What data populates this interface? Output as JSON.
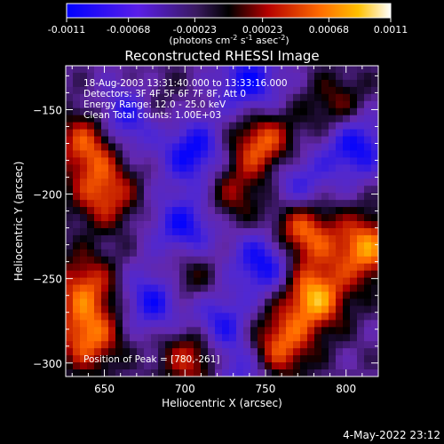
{
  "colorbar": {
    "ticks": [
      "-0.0011",
      "-0.00068",
      "-0.00023",
      "0.00023",
      "0.00068",
      "0.0011"
    ],
    "tick_values": [
      -0.0011,
      -0.00068,
      -0.00023,
      0.00023,
      0.00068,
      0.0011
    ],
    "range": [
      -0.0011,
      0.0011
    ],
    "units_text": "(photons cm",
    "units_exp1": "-2",
    "units_mid": " s",
    "units_exp2": "-1",
    "units_end": " asec",
    "units_exp3": "-2",
    "units_close": ")",
    "colors": [
      "#0000ff",
      "#7a1ee0",
      "#000000",
      "#c80000",
      "#ff8000",
      "#ffffff"
    ]
  },
  "footer": {
    "timestamp": "4-May-2022 23:12"
  },
  "chart_data": {
    "type": "heatmap",
    "title": "Reconstructed RHESSI Image",
    "xlabel": "Heliocentric X (arcsec)",
    "ylabel": "Heliocentric Y (arcsec)",
    "xlim": [
      626,
      820
    ],
    "ylim": [
      -308,
      -124
    ],
    "xticks": [
      650,
      700,
      750,
      800
    ],
    "yticks": [
      -150,
      -200,
      -250,
      -300
    ],
    "annotations": [
      "18-Aug-2003 13:31:40.000 to 13:33:16.000",
      "Detectors: 3F 4F 5F 6F 7F 8F, Att 0",
      "Energy Range: 12.0 - 25.0 keV",
      "Clean    Total counts: 1.00E+03"
    ],
    "peak_label": "Position of Peak = [780,-261]",
    "peak": [
      780,
      -261
    ],
    "bright_sources": [
      {
        "x": 780,
        "y": -261,
        "level": 1.0
      },
      {
        "x": 772,
        "y": -222,
        "level": 0.9
      },
      {
        "x": 812,
        "y": -232,
        "level": 0.9
      },
      {
        "x": 748,
        "y": -170,
        "level": 0.8
      },
      {
        "x": 758,
        "y": -290,
        "level": 0.8
      },
      {
        "x": 706,
        "y": -295,
        "level": 0.75
      },
      {
        "x": 640,
        "y": -285,
        "level": 0.8
      },
      {
        "x": 638,
        "y": -255,
        "level": 0.7
      },
      {
        "x": 650,
        "y": -200,
        "level": 0.7
      },
      {
        "x": 640,
        "y": -170,
        "level": 0.75
      },
      {
        "x": 700,
        "y": -250,
        "level": 0.5
      },
      {
        "x": 730,
        "y": -200,
        "level": 0.45
      },
      {
        "x": 795,
        "y": -150,
        "level": 0.5
      },
      {
        "x": 680,
        "y": -150,
        "level": 0.35
      }
    ],
    "dark_sources": [
      {
        "x": 665,
        "y": -155,
        "level": -0.8
      },
      {
        "x": 705,
        "y": -175,
        "level": -0.75
      },
      {
        "x": 750,
        "y": -240,
        "level": -0.8
      },
      {
        "x": 700,
        "y": -220,
        "level": -0.7
      },
      {
        "x": 682,
        "y": -262,
        "level": -0.75
      },
      {
        "x": 720,
        "y": -278,
        "level": -0.7
      },
      {
        "x": 740,
        "y": -135,
        "level": -0.7
      },
      {
        "x": 805,
        "y": -170,
        "level": -0.8
      },
      {
        "x": 770,
        "y": -195,
        "level": -0.55
      },
      {
        "x": 735,
        "y": -305,
        "level": -0.5
      }
    ]
  }
}
